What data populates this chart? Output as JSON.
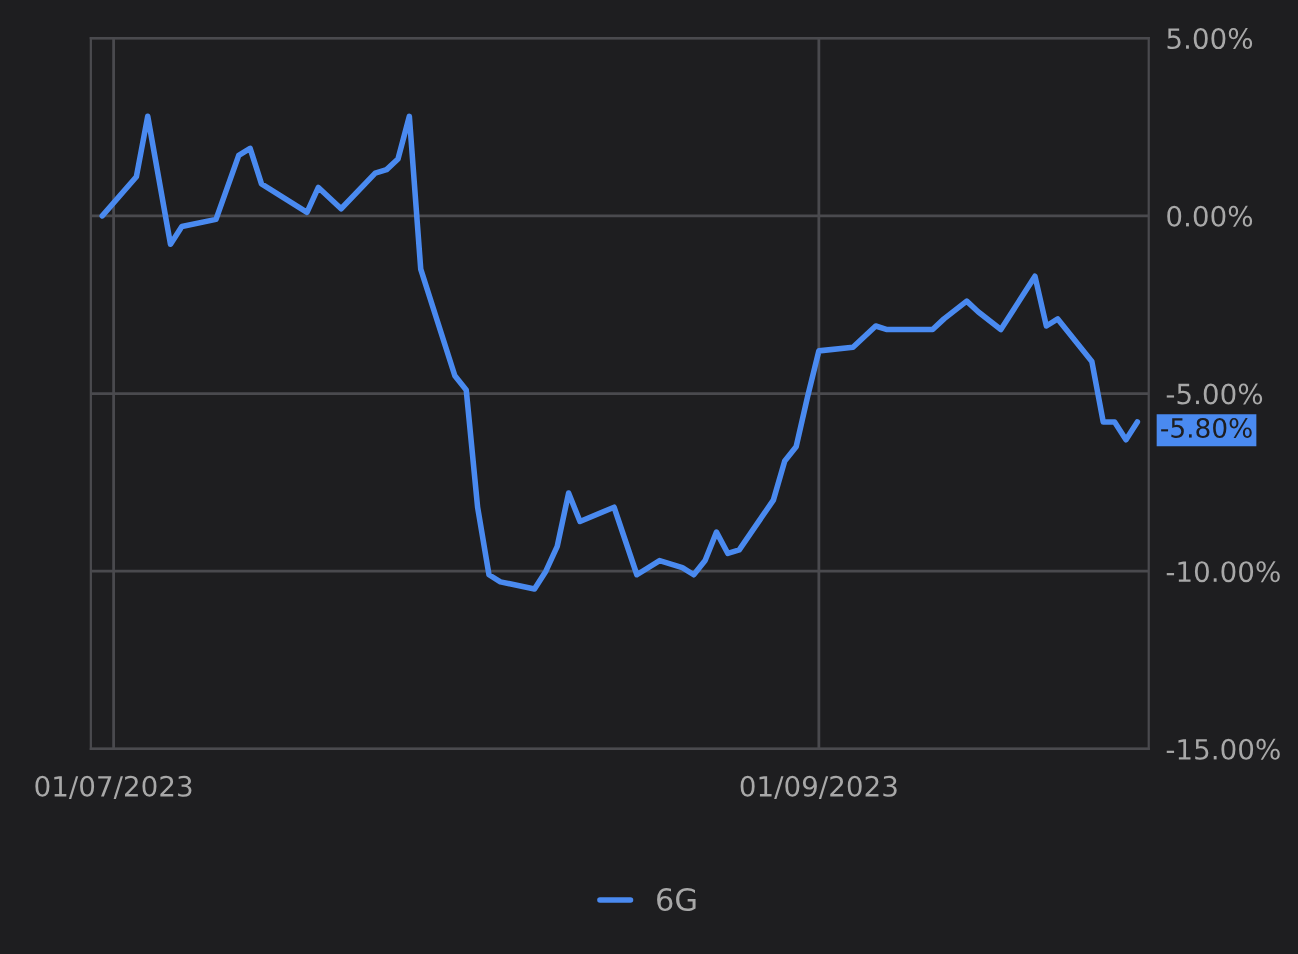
{
  "chart_data": {
    "type": "line",
    "x": [
      "2023-06-30",
      "2023-07-03",
      "2023-07-04",
      "2023-07-06",
      "2023-07-07",
      "2023-07-10",
      "2023-07-12",
      "2023-07-13",
      "2023-07-14",
      "2023-07-18",
      "2023-07-19",
      "2023-07-21",
      "2023-07-24",
      "2023-07-25",
      "2023-07-26",
      "2023-07-27",
      "2023-07-28",
      "2023-07-31",
      "2023-08-01",
      "2023-08-02",
      "2023-08-03",
      "2023-08-04",
      "2023-08-07",
      "2023-08-08",
      "2023-08-09",
      "2023-08-10",
      "2023-08-11",
      "2023-08-14",
      "2023-08-16",
      "2023-08-18",
      "2023-08-20",
      "2023-08-21",
      "2023-08-22",
      "2023-08-23",
      "2023-08-24",
      "2023-08-25",
      "2023-08-28",
      "2023-08-29",
      "2023-08-30",
      "2023-08-31",
      "2023-09-01",
      "2023-09-04",
      "2023-09-06",
      "2023-09-07",
      "2023-09-11",
      "2023-09-12",
      "2023-09-14",
      "2023-09-15",
      "2023-09-17",
      "2023-09-20",
      "2023-09-21",
      "2023-09-22",
      "2023-09-25",
      "2023-09-26",
      "2023-09-27",
      "2023-09-28",
      "2023-09-29"
    ],
    "series": [
      {
        "name": "6G",
        "color": "#4a8af0",
        "values": [
          0.0,
          1.1,
          2.8,
          -0.8,
          -0.3,
          -0.1,
          1.7,
          1.9,
          0.9,
          0.1,
          0.8,
          0.2,
          1.2,
          1.3,
          1.6,
          2.8,
          -1.5,
          -4.5,
          -4.9,
          -8.2,
          -10.1,
          -10.3,
          -10.5,
          -10.0,
          -9.3,
          -7.8,
          -8.6,
          -8.2,
          -10.1,
          -9.7,
          -9.9,
          -10.1,
          -9.7,
          -8.9,
          -9.5,
          -9.4,
          -8.0,
          -6.9,
          -6.5,
          -5.1,
          -3.8,
          -3.7,
          -3.1,
          -3.2,
          -3.2,
          -2.9,
          -2.4,
          -2.7,
          -3.2,
          -1.7,
          -3.1,
          -2.9,
          -4.1,
          -5.8,
          -5.8,
          -6.3,
          -5.8
        ]
      }
    ],
    "xlim": [
      "2023-06-29",
      "2023-09-30"
    ],
    "xticks": [
      {
        "value": "2023-07-01",
        "label": "01/07/2023"
      },
      {
        "value": "2023-09-01",
        "label": "01/09/2023"
      }
    ],
    "ylim": [
      -15,
      5
    ],
    "yticks": [
      {
        "value": 5,
        "label": "5.00%"
      },
      {
        "value": 0,
        "label": "0.00%"
      },
      {
        "value": -5,
        "label": "-5.00%"
      },
      {
        "value": -10,
        "label": "-10.00%"
      },
      {
        "value": -15,
        "label": "-15.00%"
      }
    ],
    "annotations": [
      "-5.80%"
    ],
    "grid": true,
    "legend": "bottom"
  }
}
